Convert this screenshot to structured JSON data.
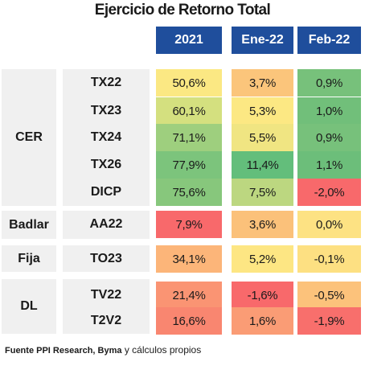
{
  "title": "Ejercicio de Retorno Total",
  "headers": [
    "2021",
    "Ene-22",
    "Feb-22"
  ],
  "groups": [
    {
      "label": "CER",
      "rows": [
        {
          "ticker": "TX22",
          "values": [
            "50,6%",
            "3,7%",
            "0,9%"
          ],
          "colors": [
            "#fbe883",
            "#fbc57b",
            "#77c17b"
          ]
        },
        {
          "ticker": "TX23",
          "values": [
            "60,1%",
            "5,3%",
            "1,0%"
          ],
          "colors": [
            "#d4e07f",
            "#fce883",
            "#71bf7a"
          ]
        },
        {
          "ticker": "TX24",
          "values": [
            "71,1%",
            "5,5%",
            "0,9%"
          ],
          "colors": [
            "#9ecf7e",
            "#f0e582",
            "#77c17b"
          ]
        },
        {
          "ticker": "TX26",
          "values": [
            "77,9%",
            "11,4%",
            "1,1%"
          ],
          "colors": [
            "#7cc47c",
            "#63be7b",
            "#6cbe7a"
          ]
        },
        {
          "ticker": "DICP",
          "values": [
            "75,6%",
            "7,5%",
            "-2,0%"
          ],
          "colors": [
            "#87c77c",
            "#bcd780",
            "#f8696b"
          ]
        }
      ]
    },
    {
      "label": "Badlar",
      "rows": [
        {
          "ticker": "AA22",
          "values": [
            "7,9%",
            "3,6%",
            "0,0%"
          ],
          "colors": [
            "#f8696b",
            "#fbc17a",
            "#fde283"
          ]
        }
      ]
    },
    {
      "label": "Fija",
      "rows": [
        {
          "ticker": "TO23",
          "values": [
            "34,1%",
            "5,2%",
            "-0,1%"
          ],
          "colors": [
            "#fcb579",
            "#fde683",
            "#fde082"
          ]
        }
      ]
    },
    {
      "label": "DL",
      "rows": [
        {
          "ticker": "TV22",
          "values": [
            "21,4%",
            "-1,6%",
            "-0,5%"
          ],
          "colors": [
            "#fa9473",
            "#f8696b",
            "#fcc27b"
          ]
        },
        {
          "ticker": "T2V2",
          "values": [
            "16,6%",
            "1,6%",
            "-1,9%"
          ],
          "colors": [
            "#f98670",
            "#fa9c75",
            "#f86f6c"
          ]
        }
      ]
    }
  ],
  "footer": {
    "bold": "Fuente PPI Research, Byma",
    "normal": " y cálculos propios"
  }
}
